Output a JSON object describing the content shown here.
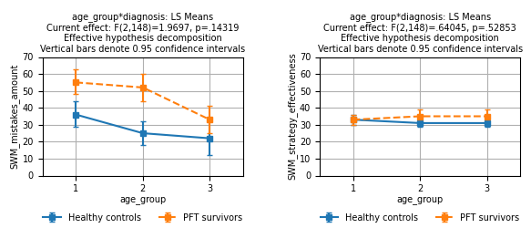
{
  "chart_data": [
    {
      "type": "line",
      "title": "age_group*diagnosis: LS Means",
      "subtitle": [
        "Current effect: F(2,148)=1.9697, p=.14319",
        "Effective hypothesis decomposition",
        "Vertical bars denote 0.95 confidence intervals"
      ],
      "x_label": "age_group",
      "y_label": "SWM_mistakes_amount",
      "x": [
        1,
        2,
        3
      ],
      "xlim": [
        0.5,
        3.5
      ],
      "xticks": [
        1,
        2,
        3
      ],
      "ylim": [
        0,
        70
      ],
      "yticks": [
        0,
        10,
        20,
        30,
        40,
        50,
        60,
        70
      ],
      "grid": true,
      "legend": "below",
      "series": [
        {
          "name": "Healthy controls",
          "marker": "square",
          "line_style": "solid",
          "values": [
            36,
            25,
            22
          ],
          "err_low": [
            7,
            7,
            10
          ],
          "err_high": [
            8,
            7,
            10
          ]
        },
        {
          "name": "PFT survivors",
          "marker": "square",
          "line_style": "dashed",
          "values": [
            55,
            52,
            33
          ],
          "err_low": [
            7,
            8,
            8
          ],
          "err_high": [
            8,
            8,
            8
          ]
        }
      ]
    },
    {
      "type": "line",
      "title": "age_group*diagnosis: LS Means",
      "subtitle": [
        "Current effect: F(2,148)=.64045, p=.52853",
        "Effective hypothesis decomposition",
        "Vertical bars denote 0.95 confidence intervals"
      ],
      "x_label": "age_group",
      "y_label": "SWM_strategy_effectiveness",
      "x": [
        1,
        2,
        3
      ],
      "xlim": [
        0.5,
        3.5
      ],
      "xticks": [
        1,
        2,
        3
      ],
      "ylim": [
        0,
        70
      ],
      "yticks": [
        0,
        10,
        20,
        30,
        40,
        50,
        60,
        70
      ],
      "grid": true,
      "legend": "below",
      "series": [
        {
          "name": "Healthy controls",
          "marker": "square",
          "line_style": "solid",
          "values": [
            33,
            31,
            31
          ],
          "err_low": [
            3,
            2,
            2
          ],
          "err_high": [
            3,
            2,
            2
          ]
        },
        {
          "name": "PFT survivors",
          "marker": "square",
          "line_style": "dashed",
          "values": [
            33,
            35,
            35
          ],
          "err_low": [
            3,
            4,
            4
          ],
          "err_high": [
            3,
            4,
            4
          ]
        }
      ]
    }
  ]
}
